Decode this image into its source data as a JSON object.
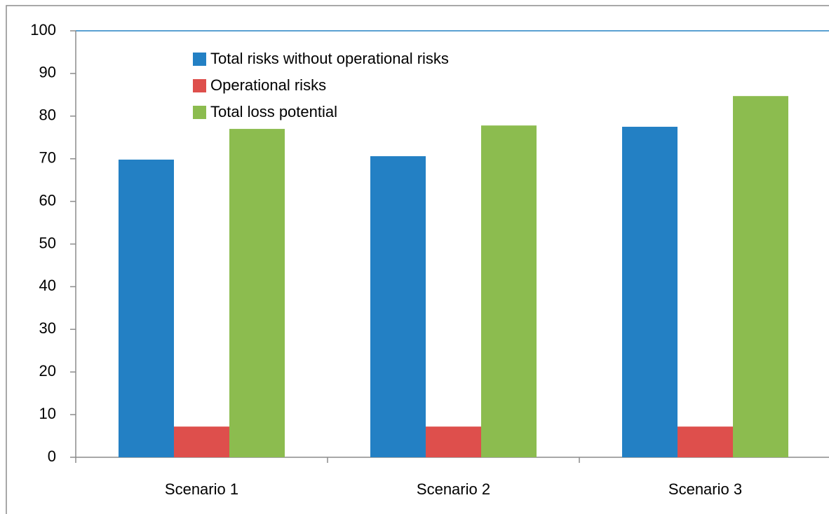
{
  "chart_data": {
    "type": "bar",
    "categories": [
      "Scenario 1",
      "Scenario 2",
      "Scenario 3"
    ],
    "series": [
      {
        "name": "Total risks without operational risks",
        "color": "#2380c4",
        "values": [
          69.8,
          70.6,
          77.5
        ]
      },
      {
        "name": "Operational risks",
        "color": "#de4f4c",
        "values": [
          7.2,
          7.2,
          7.2
        ]
      },
      {
        "name": "Total loss potential",
        "color": "#8cbc4f",
        "values": [
          77.0,
          77.8,
          84.7
        ]
      }
    ],
    "ylim": [
      0,
      100
    ],
    "yticks": [
      0,
      10,
      20,
      30,
      40,
      50,
      60,
      70,
      80,
      90,
      100
    ],
    "grid": false,
    "legend": "top-left"
  }
}
